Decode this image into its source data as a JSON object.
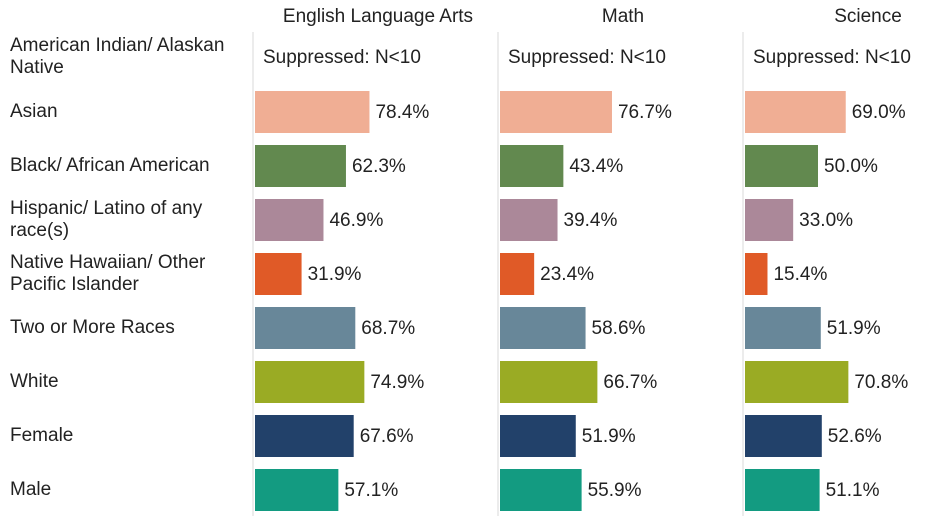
{
  "chart_data": {
    "type": "bar",
    "orientation": "horizontal",
    "categories": [
      "American Indian/ Alaskan Native",
      "Asian",
      "Black/ African American",
      "Hispanic/ Latino of any race(s)",
      "Native Hawaiian/ Other Pacific Islander",
      "Two or More Races",
      "White",
      "Female",
      "Male"
    ],
    "colors": [
      "#f0ae94",
      "#f0ae94",
      "#62894f",
      "#ab8899",
      "#e05a27",
      "#688799",
      "#9aab24",
      "#22416a",
      "#139b81"
    ],
    "xlim": [
      0,
      100
    ],
    "series": [
      {
        "name": "English Language Arts",
        "values": [
          null,
          78.4,
          62.3,
          46.9,
          31.9,
          68.7,
          74.9,
          67.6,
          57.1
        ],
        "value_labels": [
          "Suppressed: N<10",
          "78.4%",
          "62.3%",
          "46.9%",
          "31.9%",
          "68.7%",
          "74.9%",
          "67.6%",
          "57.1%"
        ]
      },
      {
        "name": "Math",
        "values": [
          null,
          76.7,
          43.4,
          39.4,
          23.4,
          58.6,
          66.7,
          51.9,
          55.9
        ],
        "value_labels": [
          "Suppressed: N<10",
          "76.7%",
          "43.4%",
          "39.4%",
          "23.4%",
          "58.6%",
          "66.7%",
          "51.9%",
          "55.9%"
        ]
      },
      {
        "name": "Science",
        "values": [
          null,
          69.0,
          50.0,
          33.0,
          15.4,
          51.9,
          70.8,
          52.6,
          51.1
        ],
        "value_labels": [
          "Suppressed: N<10",
          "69.0%",
          "50.0%",
          "33.0%",
          "15.4%",
          "51.9%",
          "70.8%",
          "52.6%",
          "51.1%"
        ]
      }
    ]
  }
}
